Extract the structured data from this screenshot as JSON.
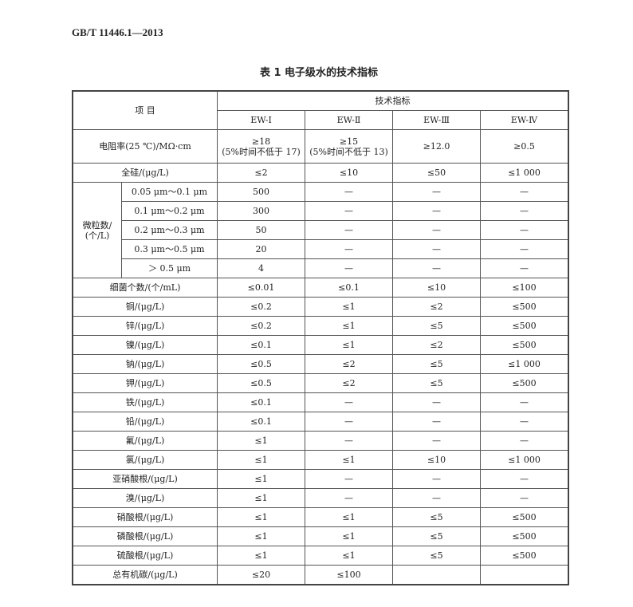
{
  "header": "GB/T  11446.1—2013",
  "title": "表 1  电子级水的技术指标",
  "table": {
    "item_header": "项 目",
    "group_header": "技术指标",
    "grades": [
      "EW-Ⅰ",
      "EW-Ⅱ",
      "EW-Ⅲ",
      "EW-Ⅳ"
    ],
    "resistivity": {
      "label": "电阻率(25 ℃)/MΩ·cm",
      "values": [
        [
          "≥18",
          "(5%时间不低于 17)"
        ],
        [
          "≥15",
          "(5%时间不低于 13)"
        ],
        [
          "≥12.0",
          ""
        ],
        [
          "≥0.5",
          ""
        ]
      ]
    },
    "silicon": {
      "label": "全硅/(μg/L)",
      "values": [
        "≤2",
        "≤10",
        "≤50",
        "≤1 000"
      ]
    },
    "particles": {
      "label": [
        "微粒数/",
        "(个/L)"
      ],
      "rows": [
        {
          "size": "0.05 μm～0.1 μm",
          "values": [
            "500",
            "—",
            "—",
            "—"
          ]
        },
        {
          "size": "0.1 μm～0.2 μm",
          "values": [
            "300",
            "—",
            "—",
            "—"
          ]
        },
        {
          "size": "0.2 μm～0.3 μm",
          "values": [
            "50",
            "—",
            "—",
            "—"
          ]
        },
        {
          "size": "0.3 μm～0.5 μm",
          "values": [
            "20",
            "—",
            "—",
            "—"
          ]
        },
        {
          "size": "＞ 0.5 μm",
          "values": [
            "4",
            "—",
            "—",
            "—"
          ]
        }
      ]
    },
    "rows": [
      {
        "label": "细菌个数/(个/mL)",
        "values": [
          "≤0.01",
          "≤0.1",
          "≤10",
          "≤100"
        ]
      },
      {
        "label": "铜/(μg/L)",
        "values": [
          "≤0.2",
          "≤1",
          "≤2",
          "≤500"
        ]
      },
      {
        "label": "锌/(μg/L)",
        "values": [
          "≤0.2",
          "≤1",
          "≤5",
          "≤500"
        ]
      },
      {
        "label": "镍/(μg/L)",
        "values": [
          "≤0.1",
          "≤1",
          "≤2",
          "≤500"
        ]
      },
      {
        "label": "钠/(μg/L)",
        "values": [
          "≤0.5",
          "≤2",
          "≤5",
          "≤1 000"
        ]
      },
      {
        "label": "钾/(μg/L)",
        "values": [
          "≤0.5",
          "≤2",
          "≤5",
          "≤500"
        ]
      },
      {
        "label": "铁/(μg/L)",
        "values": [
          "≤0.1",
          "—",
          "—",
          "—"
        ]
      },
      {
        "label": "铅/(μg/L)",
        "values": [
          "≤0.1",
          "—",
          "—",
          "—"
        ]
      },
      {
        "label": "氟/(μg/L)",
        "values": [
          "≤1",
          "—",
          "—",
          "—"
        ]
      },
      {
        "label": "氯/(μg/L)",
        "values": [
          "≤1",
          "≤1",
          "≤10",
          "≤1 000"
        ]
      },
      {
        "label": "亚硝酸根/(μg/L)",
        "values": [
          "≤1",
          "—",
          "—",
          "—"
        ]
      },
      {
        "label": "溴/(μg/L)",
        "values": [
          "≤1",
          "—",
          "—",
          "—"
        ]
      },
      {
        "label": "硝酸根/(μg/L)",
        "values": [
          "≤1",
          "≤1",
          "≤5",
          "≤500"
        ]
      },
      {
        "label": "磷酸根/(μg/L)",
        "values": [
          "≤1",
          "≤1",
          "≤5",
          "≤500"
        ]
      },
      {
        "label": "硫酸根/(μg/L)",
        "values": [
          "≤1",
          "≤1",
          "≤5",
          "≤500"
        ]
      },
      {
        "label": "总有机碳/(μg/L)",
        "values": [
          "≤20",
          "≤100",
          "",
          ""
        ]
      }
    ]
  }
}
